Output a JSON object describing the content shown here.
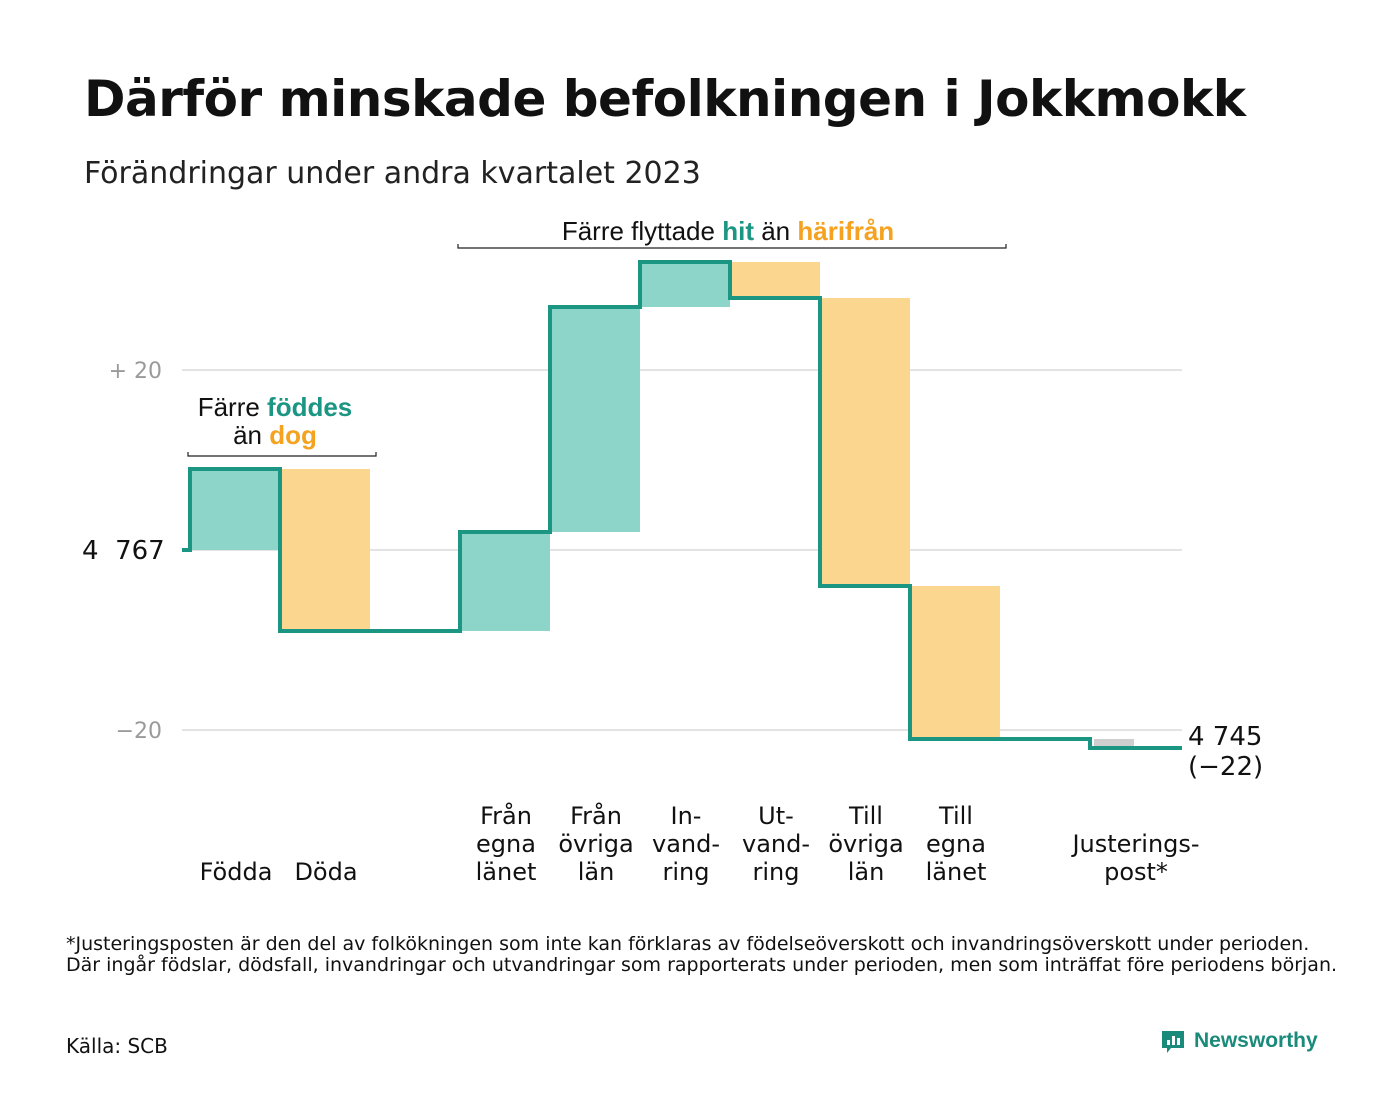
{
  "title": "Därför minskade befolkningen i Jokkmokk",
  "subtitle": "Förändringar under andra kvartalet 2023",
  "footnote": "*Justeringsposten är den del av folkökningen som inte kan förklaras av födelseöverskott och invandringsöverskott under perioden. Där ingår födslar, dödsfall, invandringar och utvandringar som rapporterats under perioden, men som inträffat före periodens början.",
  "source": "Källa: SCB",
  "brand": "Newsworthy",
  "colors": {
    "increase": "#8dd4c9",
    "decrease": "#fad68f",
    "adjust": "#cfcfcf",
    "line": "#1a9682",
    "grid": "#e3e3e3",
    "tickText": "#9a9a9a"
  },
  "annotations": {
    "births": {
      "line1_prefix": "Färre ",
      "line1_hl": "föddes",
      "line2_prefix": "än ",
      "line2_hl": "dog"
    },
    "migration": {
      "prefix": "Färre flyttade ",
      "hl1": "hit",
      "mid": " än ",
      "hl2": "härifrån"
    }
  },
  "chart_data": {
    "type": "waterfall",
    "title": "Därför minskade befolkningen i Jokkmokk",
    "subtitle": "Förändringar under andra kvartalet 2023",
    "start_value": 4767,
    "start_label": "4 767",
    "end_value": 4745,
    "end_label": "4 745",
    "end_change_label": "(−22)",
    "y_ticks": [
      {
        "value": 20,
        "label": "+  20"
      },
      {
        "value": 0,
        "label": ""
      },
      {
        "value": -20,
        "label": "−20"
      }
    ],
    "ylim": [
      -24,
      32
    ],
    "grid": true,
    "steps": [
      {
        "category": [
          "Födda"
        ],
        "value": 9,
        "kind": "increase"
      },
      {
        "category": [
          "Döda"
        ],
        "value": -18,
        "kind": "decrease"
      },
      {
        "category": [
          ""
        ],
        "value": 0,
        "kind": "gap"
      },
      {
        "category": [
          "Från",
          "egna",
          "länet"
        ],
        "value": 11,
        "kind": "increase"
      },
      {
        "category": [
          "Från",
          "övriga",
          "län"
        ],
        "value": 25,
        "kind": "increase"
      },
      {
        "category": [
          "In-",
          "vand-",
          "ring"
        ],
        "value": 5,
        "kind": "increase"
      },
      {
        "category": [
          "Ut-",
          "vand-",
          "ring"
        ],
        "value": -4,
        "kind": "decrease"
      },
      {
        "category": [
          "Till",
          "övriga",
          "län"
        ],
        "value": -32,
        "kind": "decrease"
      },
      {
        "category": [
          "Till",
          "egna",
          "länet"
        ],
        "value": -17,
        "kind": "decrease"
      },
      {
        "category": [
          ""
        ],
        "value": 0,
        "kind": "gap"
      },
      {
        "category": [
          "Justerings-",
          "post*"
        ],
        "value": -1,
        "kind": "adjust"
      }
    ]
  }
}
